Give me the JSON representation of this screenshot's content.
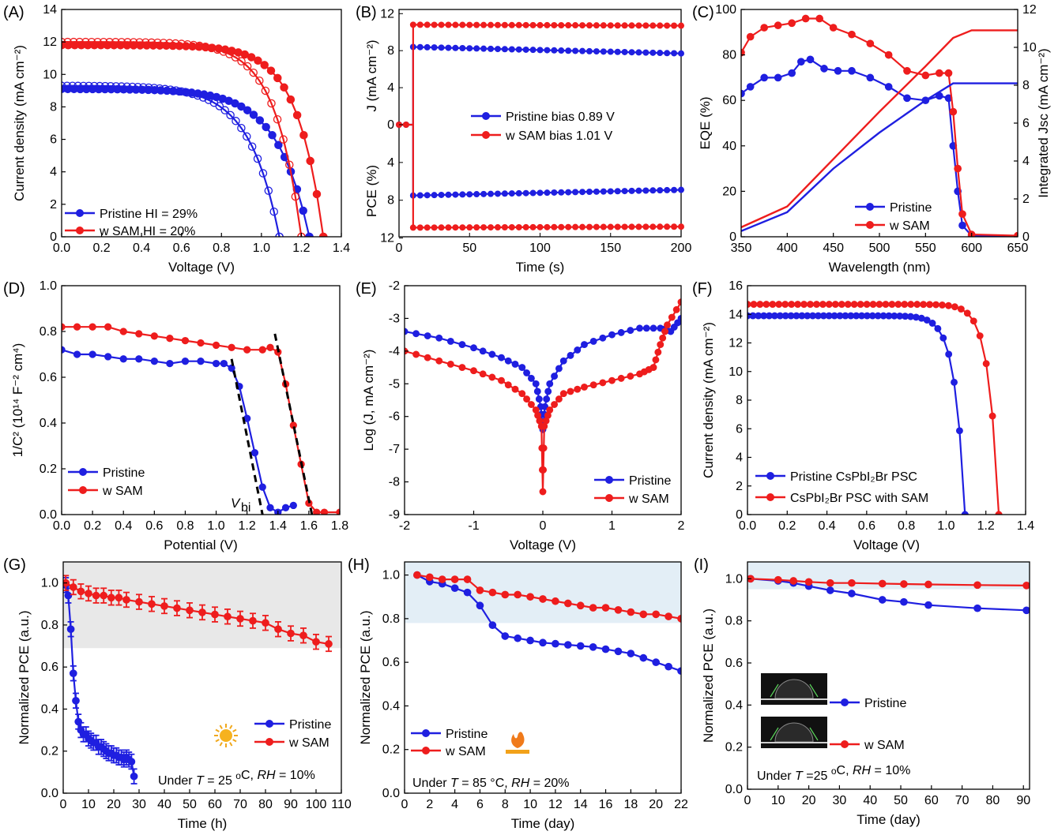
{
  "colors": {
    "blue": "#1f1fe0",
    "red": "#ee1d1d",
    "shade_gray": "#e8e8e8",
    "shade_blue": "#e3eef6",
    "axis": "#000000"
  },
  "chart_data": [
    {
      "panel": "(A)",
      "type": "line",
      "xlabel": "Voltage (V)",
      "ylabel": "Current density (mA cm⁻²)",
      "xlim": [
        0,
        1.4
      ],
      "ylim": [
        0,
        14
      ],
      "xticks": [
        0.0,
        0.2,
        0.4,
        0.6,
        0.8,
        1.0,
        1.2,
        1.4
      ],
      "yticks": [
        0,
        2,
        4,
        6,
        8,
        10,
        12,
        14
      ],
      "legend": [
        "Pristine HI = 29%",
        "w SAM HI = 20%"
      ],
      "legend_position": "bottom-left",
      "series": [
        {
          "name": "Pristine HI = 29%",
          "color": "blue",
          "marker": "filled",
          "params": {
            "jsc": 9.1,
            "voc": 1.24,
            "n": 0.16
          }
        },
        {
          "name": "Pristine HI = 29%",
          "color": "blue",
          "marker": "open",
          "params": {
            "jsc": 9.3,
            "voc": 1.09,
            "n": 0.15
          }
        },
        {
          "name": "w SAM HI = 20%",
          "color": "red",
          "marker": "filled",
          "params": {
            "jsc": 11.8,
            "voc": 1.31,
            "n": 0.13
          }
        },
        {
          "name": "w SAM HI = 20%",
          "color": "red",
          "marker": "open",
          "params": {
            "jsc": 12.0,
            "voc": 1.2,
            "n": 0.13
          }
        }
      ]
    },
    {
      "panel": "(B)",
      "type": "line",
      "xlabel": "Time (s)",
      "ylabel_top": "J (mA cm⁻²)",
      "ylabel_bottom": "PCE (%)",
      "xlim": [
        0,
        200
      ],
      "xticks": [
        0,
        50,
        100,
        150,
        200
      ],
      "yticks_top": [
        0,
        4,
        8,
        12
      ],
      "yticks_bottom": [
        4,
        8,
        12
      ],
      "legend": [
        "Pristine    bias 0.89 V",
        "w SAM    bias 1.01 V"
      ],
      "legend_position": "center-right",
      "series": [
        {
          "name": "Pristine",
          "color": "blue",
          "J_start": 8.4,
          "J_end": 7.7,
          "PCE_start": 7.5,
          "PCE_end": 6.9
        },
        {
          "name": "w SAM",
          "color": "red",
          "J_start": 10.8,
          "J_end": 10.7,
          "PCE_start": 10.9,
          "PCE_end": 10.8
        }
      ],
      "light_on_time": 10
    },
    {
      "panel": "(C)",
      "type": "line",
      "xlabel": "Wavelength (nm)",
      "ylabel": "EQE (%)",
      "ylabel_right": "Integrated Jsc (mA cm⁻²)",
      "xlim": [
        350,
        650
      ],
      "ylim": [
        0,
        100
      ],
      "ylim_right": [
        0,
        12
      ],
      "xticks": [
        350,
        400,
        450,
        500,
        550,
        600,
        650
      ],
      "yticks": [
        0,
        20,
        40,
        60,
        80,
        100
      ],
      "yticks_right": [
        0,
        2,
        4,
        6,
        8,
        10,
        12
      ],
      "legend": [
        "Pristine",
        "w SAM"
      ],
      "legend_position": "bottom-center",
      "series": [
        {
          "name": "Pristine",
          "color": "blue",
          "x": [
            350,
            360,
            375,
            390,
            405,
            415,
            425,
            440,
            455,
            470,
            490,
            510,
            530,
            550,
            565,
            575,
            580,
            585,
            590,
            600,
            650
          ],
          "y": [
            63,
            66,
            70,
            70,
            72,
            77,
            78,
            74,
            73,
            73,
            70,
            66,
            61,
            60,
            62,
            61,
            40,
            20,
            5,
            0.5,
            0.3
          ]
        },
        {
          "name": "w SAM",
          "color": "red",
          "x": [
            350,
            360,
            375,
            390,
            405,
            420,
            435,
            450,
            470,
            490,
            510,
            530,
            550,
            565,
            575,
            580,
            585,
            590,
            600,
            650
          ],
          "y": [
            81,
            88,
            92,
            93,
            94,
            96,
            96,
            92,
            89,
            85,
            80,
            73,
            71,
            72,
            72,
            55,
            30,
            10,
            1,
            0.5
          ]
        },
        {
          "name": "Pristine",
          "color": "blue",
          "axis": "right",
          "x": [
            350,
            400,
            450,
            500,
            550,
            580,
            600,
            650
          ],
          "y": [
            0.3,
            1.3,
            3.6,
            5.5,
            7.2,
            8.1,
            8.1,
            8.1
          ]
        },
        {
          "name": "w SAM",
          "color": "red",
          "axis": "right",
          "x": [
            350,
            400,
            450,
            500,
            550,
            580,
            600,
            650
          ],
          "y": [
            0.5,
            1.6,
            4.1,
            6.6,
            9.0,
            10.5,
            10.9,
            10.9
          ]
        }
      ]
    },
    {
      "panel": "(D)",
      "type": "line",
      "xlabel": "Potential (V)",
      "ylabel": "1/C² (10¹⁴ F⁻² cm⁴)",
      "xlim": [
        0,
        1.8
      ],
      "ylim": [
        0,
        1.0
      ],
      "xticks": [
        0.0,
        0.2,
        0.4,
        0.6,
        0.8,
        1.0,
        1.2,
        1.4,
        1.6,
        1.8
      ],
      "yticks": [
        0.0,
        0.2,
        0.4,
        0.6,
        0.8,
        1.0
      ],
      "legend": [
        "Pristine",
        "w SAM"
      ],
      "legend_position": "bottom-left",
      "annotation_main": "V",
      "annotation_sub": "bi",
      "series": [
        {
          "name": "Pristine",
          "color": "blue",
          "x": [
            0,
            0.1,
            0.2,
            0.3,
            0.4,
            0.5,
            0.6,
            0.7,
            0.8,
            0.9,
            1.0,
            1.05,
            1.1,
            1.15,
            1.2,
            1.25,
            1.3,
            1.35,
            1.4,
            1.45,
            1.5
          ],
          "y": [
            0.72,
            0.7,
            0.7,
            0.69,
            0.68,
            0.68,
            0.67,
            0.66,
            0.67,
            0.67,
            0.66,
            0.66,
            0.64,
            0.56,
            0.42,
            0.27,
            0.12,
            0.03,
            0.01,
            0.03,
            0.04
          ]
        },
        {
          "name": "w SAM",
          "color": "red",
          "x": [
            0,
            0.1,
            0.2,
            0.3,
            0.4,
            0.5,
            0.6,
            0.7,
            0.8,
            0.9,
            1.0,
            1.1,
            1.2,
            1.3,
            1.35,
            1.4,
            1.45,
            1.5,
            1.55,
            1.6,
            1.65,
            1.7,
            1.8
          ],
          "y": [
            0.82,
            0.82,
            0.82,
            0.82,
            0.8,
            0.79,
            0.78,
            0.77,
            0.76,
            0.75,
            0.74,
            0.73,
            0.72,
            0.72,
            0.73,
            0.71,
            0.57,
            0.39,
            0.22,
            0.05,
            0.01,
            0.01,
            0.01
          ]
        }
      ],
      "fit_lines": [
        {
          "x": [
            1.1,
            1.3
          ],
          "y": [
            0.68,
            0.0
          ]
        },
        {
          "x": [
            1.38,
            1.62
          ],
          "y": [
            0.79,
            0.0
          ]
        }
      ]
    },
    {
      "panel": "(E)",
      "type": "line",
      "xlabel": "Voltage (V)",
      "ylabel": "Log (J, mA cm⁻²)",
      "xlim": [
        -2,
        2
      ],
      "ylim": [
        -9,
        -2
      ],
      "xticks": [
        -2,
        -1,
        0,
        1,
        2
      ],
      "yticks": [
        -9,
        -8,
        -7,
        -6,
        -5,
        -4,
        -3,
        -2
      ],
      "legend": [
        "Pristine",
        "w SAM"
      ],
      "legend_position": "bottom-right",
      "series": [
        {
          "name": "Pristine",
          "color": "blue",
          "x": [
            -2,
            -1.5,
            -1,
            -0.6,
            -0.3,
            -0.1,
            -0.03,
            0,
            0.03,
            0.1,
            0.3,
            0.6,
            1.0,
            1.4,
            1.7,
            1.85,
            2.0
          ],
          "y": [
            -3.4,
            -3.6,
            -3.9,
            -4.2,
            -4.5,
            -5.0,
            -5.7,
            -6.4,
            -5.7,
            -5.0,
            -4.3,
            -3.8,
            -3.5,
            -3.3,
            -3.3,
            -3.4,
            -3.0
          ]
        },
        {
          "name": "w SAM",
          "color": "red",
          "x": [
            -2,
            -1.5,
            -1,
            -0.6,
            -0.3,
            -0.1,
            -0.02,
            0,
            0.02,
            0.1,
            0.3,
            0.6,
            1.0,
            1.4,
            1.6,
            1.7,
            1.8,
            2.0
          ],
          "y": [
            -4.0,
            -4.3,
            -4.6,
            -4.9,
            -5.3,
            -5.8,
            -6.3,
            -8.3,
            -6.3,
            -5.8,
            -5.3,
            -5.1,
            -4.9,
            -4.7,
            -4.5,
            -3.8,
            -3.2,
            -2.5
          ]
        }
      ]
    },
    {
      "panel": "(F)",
      "type": "line",
      "xlabel": "Voltage (V)",
      "ylabel": "Current density (mA cm⁻²)",
      "xlim": [
        0,
        1.4
      ],
      "ylim": [
        0,
        16
      ],
      "xticks": [
        0.0,
        0.2,
        0.4,
        0.6,
        0.8,
        1.0,
        1.2,
        1.4
      ],
      "yticks": [
        0,
        2,
        4,
        6,
        8,
        10,
        12,
        14,
        16
      ],
      "legend": [
        "Pristine CsPbI₂Br PSC",
        "CsPbI₂Br PSC with SAM"
      ],
      "legend_position": "bottom-left",
      "series": [
        {
          "name": "Pristine CsPbI₂Br PSC",
          "color": "blue",
          "params": {
            "jsc": 13.9,
            "voc": 1.095,
            "n": 0.05
          }
        },
        {
          "name": "CsPbI₂Br PSC with SAM",
          "color": "red",
          "params": {
            "jsc": 14.7,
            "voc": 1.265,
            "n": 0.05
          }
        }
      ]
    },
    {
      "panel": "(G)",
      "type": "line",
      "xlabel": "Time (h)",
      "ylabel": "Normalized PCE (a.u.)",
      "xlim": [
        0,
        110
      ],
      "ylim": [
        0,
        1.1
      ],
      "xticks": [
        0,
        10,
        20,
        30,
        40,
        50,
        60,
        70,
        80,
        90,
        100,
        110
      ],
      "yticks": [
        0.0,
        0.2,
        0.4,
        0.6,
        0.8,
        1.0
      ],
      "legend": [
        "Pristine",
        "w SAM"
      ],
      "legend_position": "bottom-right",
      "condition_prefix": "Under ",
      "condition_T": "T",
      "condition_mid": " = 25 ",
      "condition_unit": "C, ",
      "condition_RH": "RH",
      "condition_suffix": " = 10%",
      "shade_y": [
        0.69,
        1.1
      ],
      "series": [
        {
          "name": "Pristine",
          "color": "blue",
          "x": [
            1,
            2,
            3,
            4,
            5,
            6,
            7,
            8,
            9,
            10,
            11,
            12,
            13,
            14,
            15,
            16,
            17,
            18,
            19,
            20,
            21,
            22,
            23,
            24,
            25,
            26,
            27,
            28
          ],
          "y": [
            0.99,
            0.94,
            0.78,
            0.57,
            0.44,
            0.34,
            0.3,
            0.28,
            0.28,
            0.26,
            0.25,
            0.24,
            0.24,
            0.22,
            0.22,
            0.21,
            0.2,
            0.19,
            0.19,
            0.18,
            0.18,
            0.17,
            0.17,
            0.16,
            0.17,
            0.16,
            0.15,
            0.08
          ]
        },
        {
          "name": "w SAM",
          "color": "red",
          "x": [
            1,
            4,
            7,
            10,
            13,
            16,
            19,
            22,
            25,
            30,
            35,
            40,
            45,
            50,
            55,
            60,
            65,
            70,
            75,
            80,
            85,
            90,
            95,
            100,
            105
          ],
          "y": [
            1.0,
            0.98,
            0.96,
            0.95,
            0.94,
            0.94,
            0.93,
            0.93,
            0.92,
            0.91,
            0.9,
            0.89,
            0.88,
            0.87,
            0.86,
            0.85,
            0.84,
            0.83,
            0.82,
            0.81,
            0.78,
            0.76,
            0.75,
            0.72,
            0.71
          ]
        }
      ]
    },
    {
      "panel": "(H)",
      "type": "line",
      "xlabel": "Time (day)",
      "ylabel": "Normalized PCE (a.u.)",
      "xlim": [
        0,
        22
      ],
      "ylim": [
        0,
        1.06
      ],
      "xticks": [
        0,
        2,
        4,
        6,
        8,
        10,
        12,
        14,
        16,
        18,
        20,
        22
      ],
      "yticks": [
        0.0,
        0.2,
        0.4,
        0.6,
        0.8,
        1.0
      ],
      "legend": [
        "Pristine",
        "w SAM"
      ],
      "legend_position": "bottom-left",
      "condition_prefix": "Under ",
      "condition_T": "T",
      "condition_mid": " = 85 °C,  ",
      "condition_RH": "RH",
      "condition_suffix": " = 20%",
      "shade_y": [
        0.78,
        1.06
      ],
      "series": [
        {
          "name": "Pristine",
          "color": "blue",
          "x": [
            1,
            2,
            3,
            4,
            5,
            6,
            7,
            8,
            9,
            10,
            11,
            12,
            13,
            14,
            15,
            16,
            17,
            18,
            19,
            20,
            21,
            22
          ],
          "y": [
            1.0,
            0.97,
            0.96,
            0.94,
            0.92,
            0.86,
            0.77,
            0.72,
            0.71,
            0.7,
            0.69,
            0.685,
            0.68,
            0.675,
            0.67,
            0.66,
            0.65,
            0.64,
            0.62,
            0.6,
            0.58,
            0.56
          ]
        },
        {
          "name": "w SAM",
          "color": "red",
          "x": [
            1,
            2,
            3,
            4,
            5,
            6,
            7,
            8,
            9,
            10,
            11,
            12,
            13,
            14,
            15,
            16,
            17,
            18,
            19,
            20,
            21,
            22
          ],
          "y": [
            1.0,
            0.99,
            0.98,
            0.98,
            0.98,
            0.93,
            0.92,
            0.91,
            0.91,
            0.9,
            0.89,
            0.88,
            0.87,
            0.86,
            0.85,
            0.85,
            0.84,
            0.83,
            0.82,
            0.82,
            0.81,
            0.8
          ]
        }
      ]
    },
    {
      "panel": "(I)",
      "type": "line",
      "xlabel": "Time (day)",
      "ylabel": "Normalized PCE (a.u.)",
      "xlim": [
        0,
        92
      ],
      "ylim": [
        0,
        1.08
      ],
      "xticks": [
        0,
        10,
        20,
        30,
        40,
        50,
        60,
        70,
        80,
        90
      ],
      "yticks": [
        0.0,
        0.2,
        0.4,
        0.6,
        0.8,
        1.0
      ],
      "legend": [
        "Pristine",
        "w SAM"
      ],
      "legend_position": "center-left",
      "condition_prefix": "Under ",
      "condition_T": "T",
      "condition_mid": " =25 ",
      "condition_unit": "C, ",
      "condition_RH": "RH",
      "condition_suffix": " = 10%",
      "shade_y": [
        0.95,
        1.08
      ],
      "series": [
        {
          "name": "Pristine",
          "color": "blue",
          "x": [
            1,
            10,
            15,
            20,
            27,
            34,
            44,
            51,
            59,
            75,
            91
          ],
          "y": [
            1.0,
            0.99,
            0.98,
            0.965,
            0.945,
            0.93,
            0.9,
            0.89,
            0.875,
            0.86,
            0.85
          ]
        },
        {
          "name": "w SAM",
          "color": "red",
          "x": [
            1,
            10,
            15,
            20,
            27,
            34,
            44,
            51,
            59,
            75,
            91
          ],
          "y": [
            1.0,
            0.995,
            0.99,
            0.985,
            0.98,
            0.98,
            0.977,
            0.975,
            0.973,
            0.97,
            0.968
          ]
        }
      ]
    }
  ]
}
